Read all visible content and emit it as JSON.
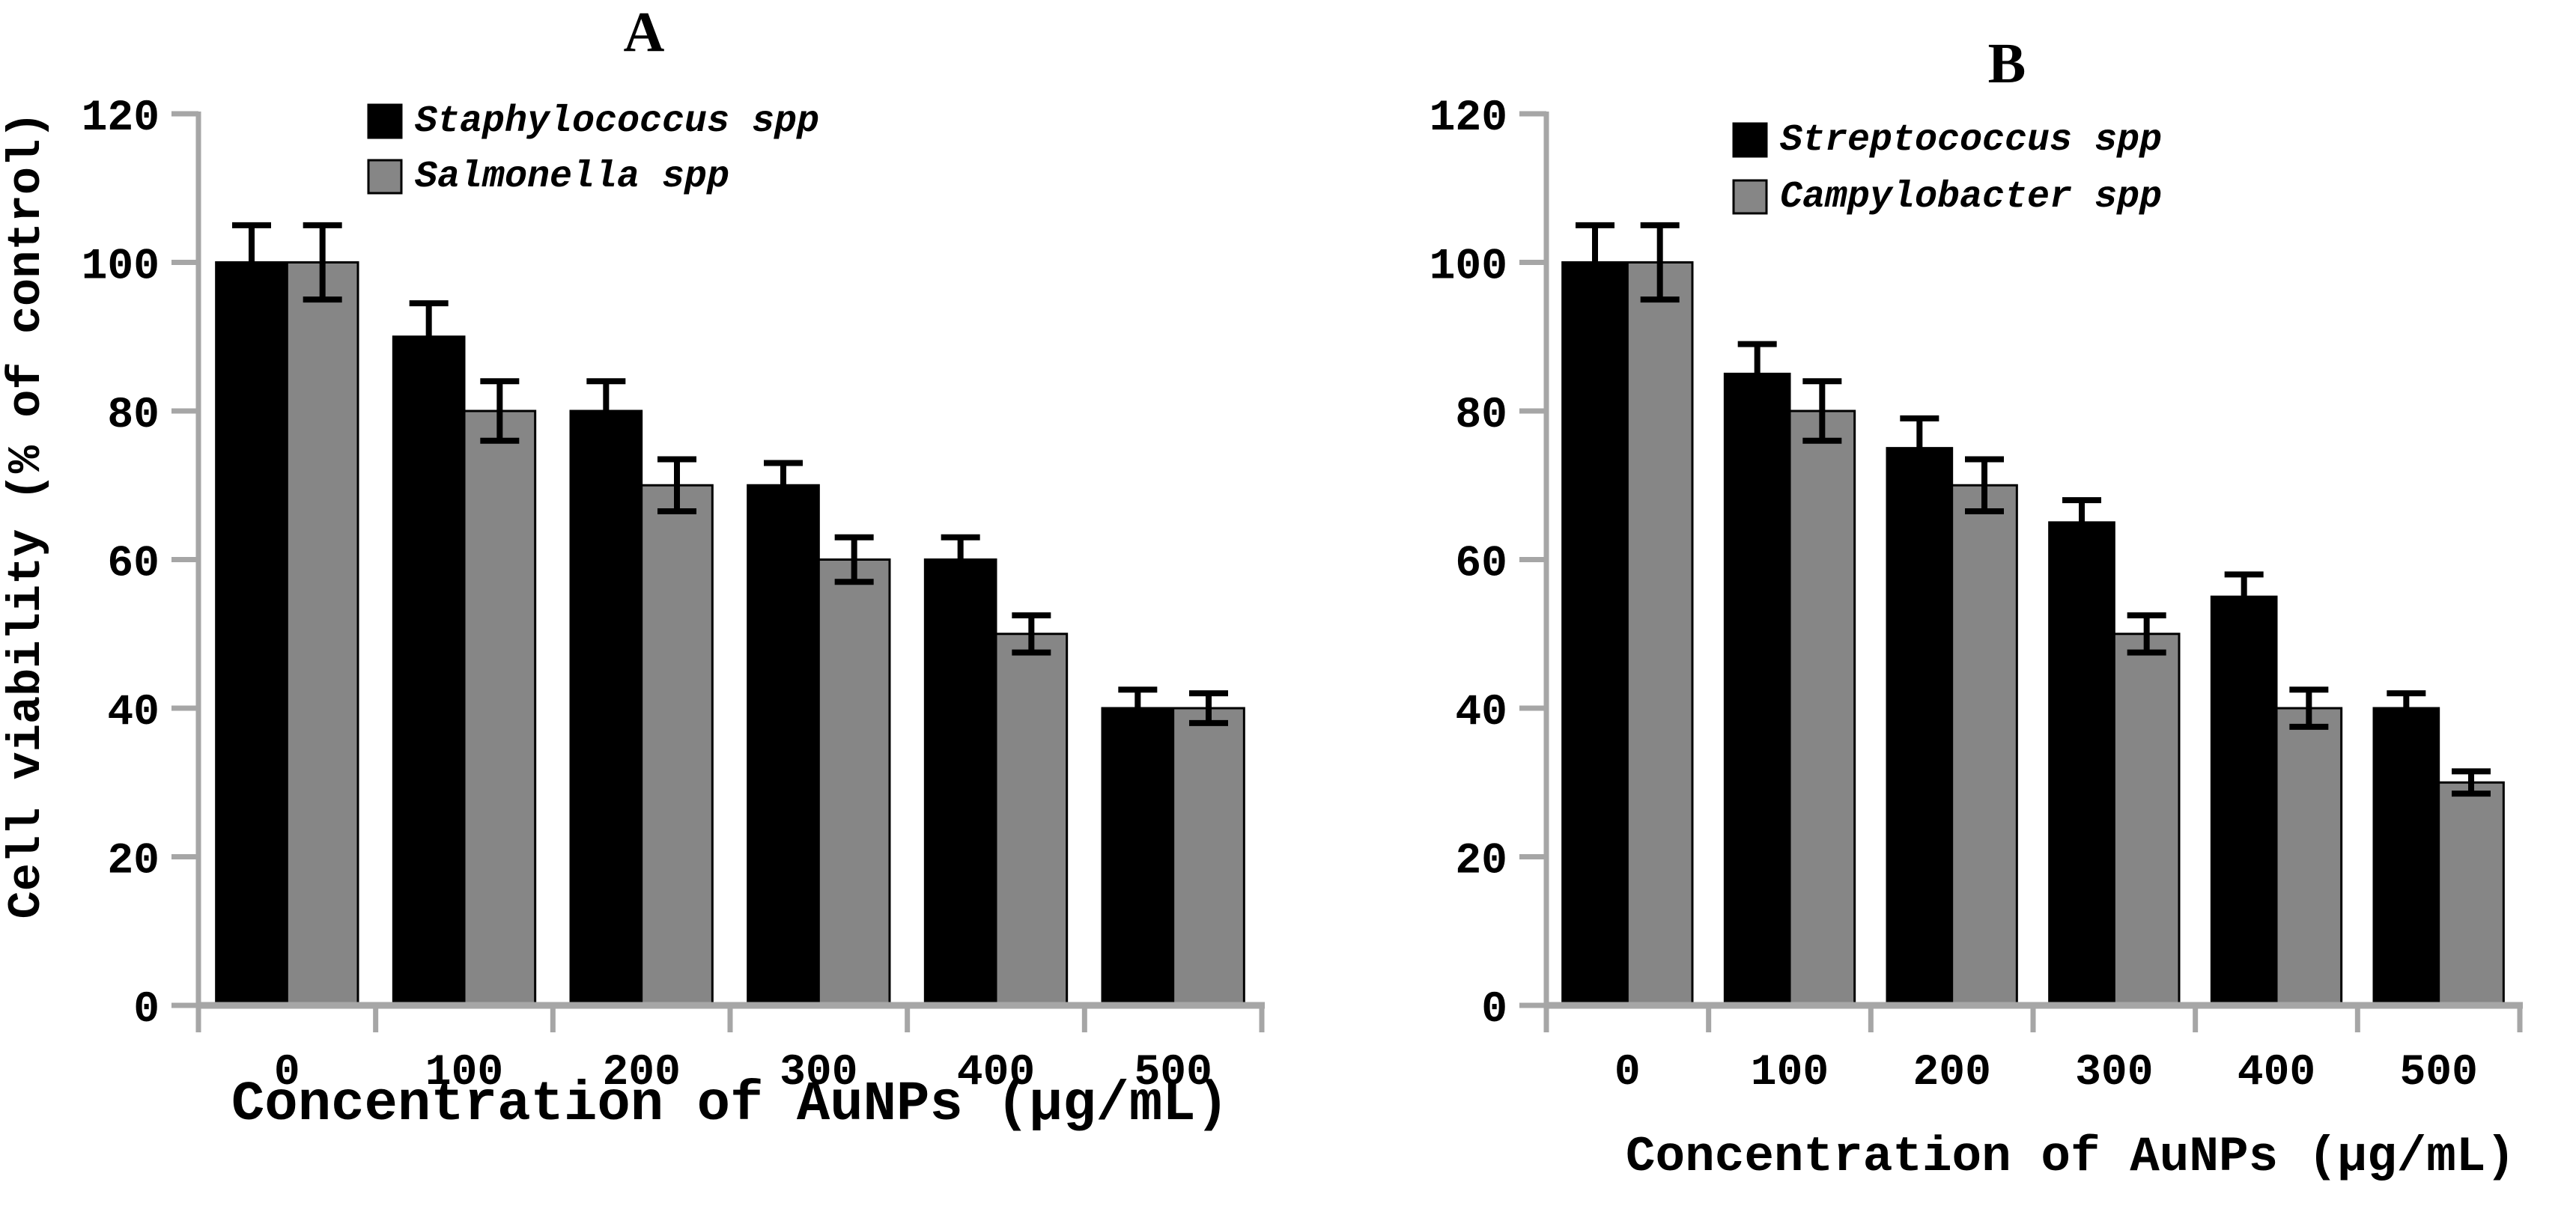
{
  "figure": {
    "background": "#ffffff",
    "axis_color": "#a6a6a6",
    "error_bar_color": "#000000",
    "bar_outline_color": "#000000"
  },
  "chart_data": [
    {
      "panel_label": "A",
      "type": "bar",
      "categories": [
        "0",
        "100",
        "200",
        "300",
        "400",
        "500"
      ],
      "xlabel": "Concentration of AuNPs (µg/mL)",
      "ylabel": "Cell viability (% of control)",
      "ylim": [
        0,
        120
      ],
      "yticks": [
        0,
        20,
        40,
        60,
        80,
        100,
        120
      ],
      "grid": false,
      "legend_position": "top-left-inside",
      "series": [
        {
          "name": "Staphylococcus spp",
          "color": "#000000",
          "values": [
            100,
            90,
            80,
            70,
            60,
            40
          ],
          "errors": [
            5,
            4.5,
            4,
            3,
            3,
            2.5
          ]
        },
        {
          "name": "Salmonella spp",
          "color": "#868686",
          "values": [
            100,
            80,
            70,
            60,
            50,
            40
          ],
          "errors": [
            5,
            4,
            3.5,
            3,
            2.5,
            2
          ]
        }
      ]
    },
    {
      "panel_label": "B",
      "type": "bar",
      "categories": [
        "0",
        "100",
        "200",
        "300",
        "400",
        "500"
      ],
      "xlabel": "Concentration of AuNPs (µg/mL)",
      "ylabel": "",
      "ylim": [
        0,
        120
      ],
      "yticks": [
        0,
        20,
        40,
        60,
        80,
        100,
        120
      ],
      "grid": false,
      "legend_position": "top-left-inside",
      "series": [
        {
          "name": "Streptococcus spp",
          "color": "#000000",
          "values": [
            100,
            85,
            75,
            65,
            55,
            40
          ],
          "errors": [
            5,
            4,
            4,
            3,
            3,
            2
          ]
        },
        {
          "name": "Campylobacter spp",
          "color": "#868686",
          "values": [
            100,
            80,
            70,
            50,
            40,
            30
          ],
          "errors": [
            5,
            4,
            3.5,
            2.5,
            2.5,
            1.5
          ]
        }
      ]
    }
  ]
}
